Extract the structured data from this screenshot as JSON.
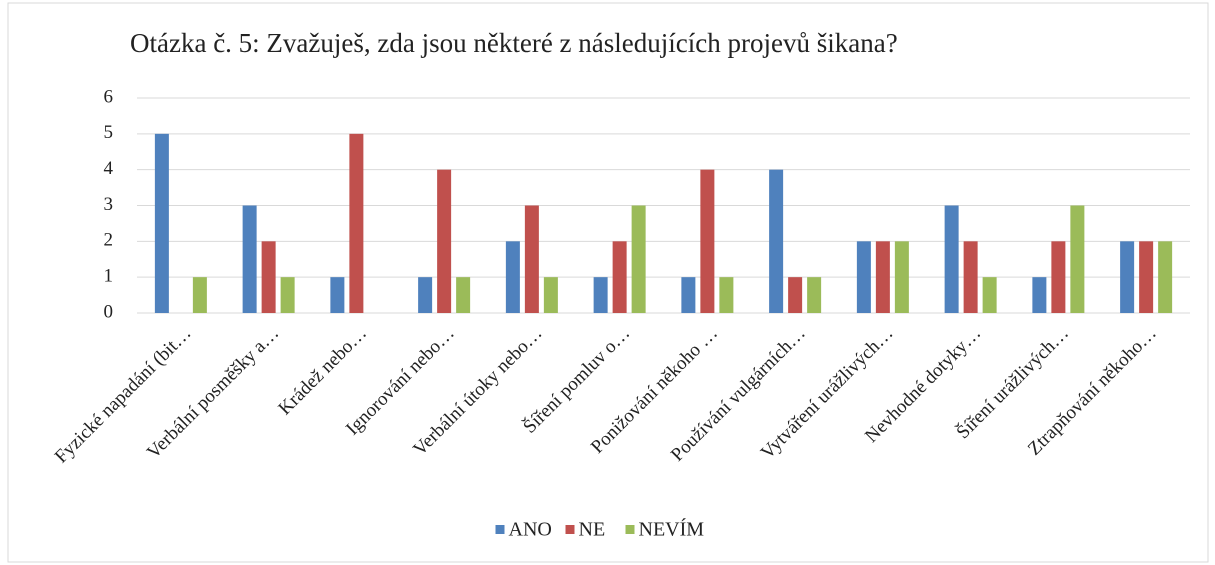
{
  "chart_data": {
    "type": "bar",
    "title": "Otázka č. 5: Zvažuješ, zda jsou některé z následujících projevů šikana?",
    "categories": [
      "Fyzické napadání (bit…",
      "Verbální posměšky a…",
      "Krádež nebo…",
      "Ignorování nebo…",
      "Verbální útoky nebo…",
      "Šíření pomluv o…",
      "Ponižování někoho …",
      "Používání vulgárních…",
      "Vytváření urážlivých…",
      "Nevhodné dotyky…",
      "Šíření urážlivých…",
      "Ztrapňování někoho…"
    ],
    "series": [
      {
        "name": "ANO",
        "color": "#4f81bd",
        "values": [
          5,
          3,
          1,
          1,
          2,
          1,
          1,
          4,
          2,
          3,
          1,
          2
        ]
      },
      {
        "name": "NE",
        "color": "#c0504d",
        "values": [
          0,
          2,
          5,
          4,
          3,
          2,
          4,
          1,
          2,
          2,
          2,
          2
        ]
      },
      {
        "name": "NEVÍM",
        "color": "#9bbb59",
        "values": [
          1,
          1,
          0,
          1,
          1,
          3,
          1,
          1,
          2,
          1,
          3,
          2
        ]
      }
    ],
    "ylim": [
      0,
      6
    ],
    "yticks": [
      0,
      1,
      2,
      3,
      4,
      5,
      6
    ],
    "grid": true,
    "legend": "bottom"
  }
}
